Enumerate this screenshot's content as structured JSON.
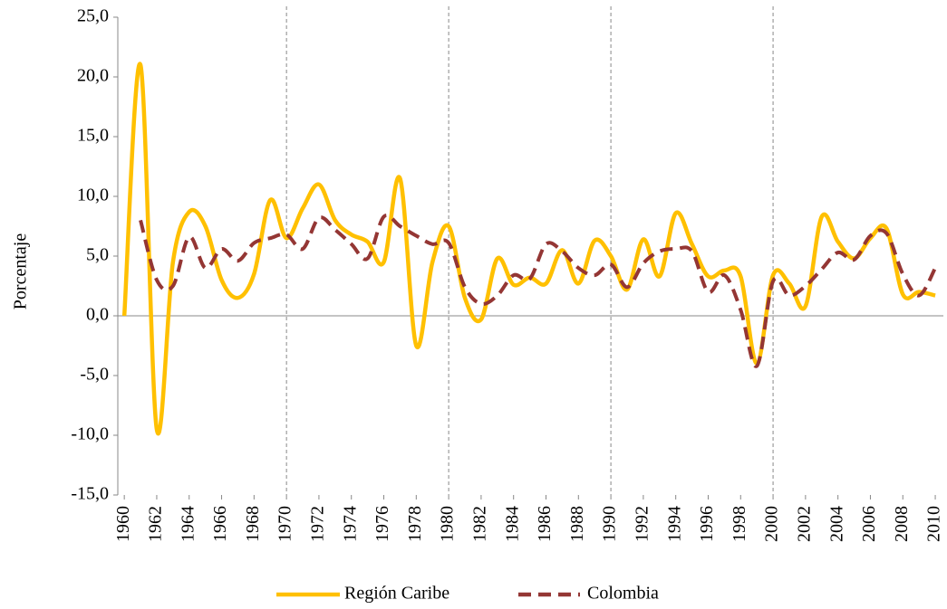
{
  "chart_data": {
    "type": "line",
    "y_label": "Porcentaje",
    "x": [
      1960,
      1961,
      1962,
      1963,
      1964,
      1965,
      1966,
      1967,
      1968,
      1969,
      1970,
      1971,
      1972,
      1973,
      1974,
      1975,
      1976,
      1977,
      1978,
      1979,
      1980,
      1981,
      1982,
      1983,
      1984,
      1985,
      1986,
      1987,
      1988,
      1989,
      1990,
      1991,
      1992,
      1993,
      1994,
      1995,
      1996,
      1997,
      1998,
      1999,
      2000,
      2001,
      2002,
      2003,
      2004,
      2005,
      2006,
      2007,
      2008,
      2009,
      2010
    ],
    "series": [
      {
        "name": "Región Caribe",
        "color": "#ffc000",
        "dash": false,
        "values": [
          0,
          21,
          -9.5,
          4.5,
          8.7,
          7.5,
          3,
          1.5,
          3.5,
          9.7,
          6.5,
          9,
          11,
          8,
          6.8,
          6.2,
          4.5,
          11.5,
          -2.5,
          4.5,
          7.5,
          1.5,
          -0.3,
          4.8,
          2.6,
          3.2,
          2.7,
          5.5,
          2.7,
          6.3,
          5,
          2.2,
          6.4,
          3.3,
          8.6,
          6,
          3.3,
          3.8,
          3.3,
          -4,
          3.4,
          2.7,
          0.8,
          8.3,
          6.2,
          4.8,
          6.5,
          7.3,
          1.8,
          2,
          1.7
        ]
      },
      {
        "name": "Colombia",
        "color": "#943634",
        "dash": true,
        "values": [
          null,
          8,
          3,
          2.5,
          6.6,
          4,
          5.6,
          4.6,
          6.1,
          6.5,
          6.8,
          5.6,
          8.2,
          7.2,
          6,
          4.8,
          8.3,
          7.5,
          6.7,
          6,
          6.1,
          2.4,
          1,
          1.7,
          3.4,
          3.1,
          6,
          5.4,
          4,
          3.4,
          4.3,
          2.4,
          4.4,
          5.4,
          5.6,
          5.4,
          2,
          3.4,
          0.5,
          -4.2,
          2.9,
          1.7,
          2.5,
          3.9,
          5.3,
          4.7,
          6.7,
          6.9,
          3.5,
          1.7,
          4
        ]
      }
    ],
    "xlim": [
      1959.6,
      2010.5
    ],
    "xticks": [
      1960,
      1962,
      1964,
      1966,
      1968,
      1970,
      1972,
      1974,
      1976,
      1978,
      1980,
      1982,
      1984,
      1986,
      1988,
      1990,
      1992,
      1994,
      1996,
      1998,
      2000,
      2002,
      2004,
      2006,
      2008,
      2010
    ],
    "ylim": [
      -15,
      25
    ],
    "yticks": [
      {
        "value": -15,
        "label": "-15,0"
      },
      {
        "value": -10,
        "label": "-10,0"
      },
      {
        "value": -5,
        "label": "-5,0"
      },
      {
        "value": 0,
        "label": "0,0"
      },
      {
        "value": 5,
        "label": "5,0"
      },
      {
        "value": 10,
        "label": "10,0"
      },
      {
        "value": 15,
        "label": "15,0"
      },
      {
        "value": 20,
        "label": "20,0"
      },
      {
        "value": 25,
        "label": "25,0"
      }
    ],
    "reference_lines": [
      1970,
      1980,
      1990,
      2000
    ],
    "legend": "bottom"
  }
}
